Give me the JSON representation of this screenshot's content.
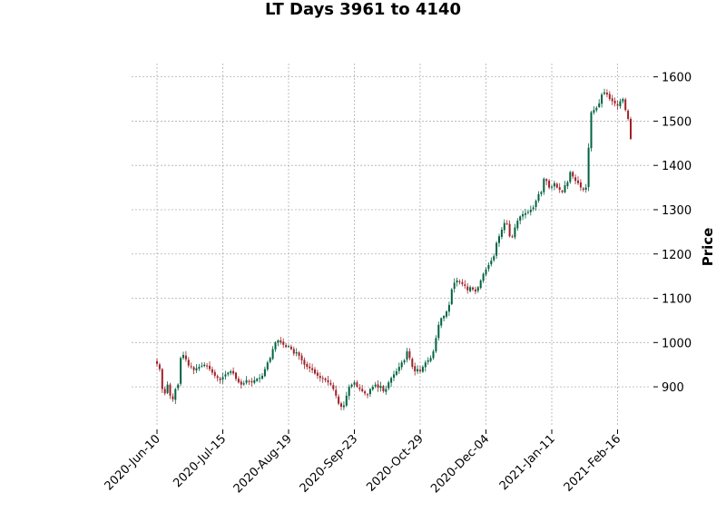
{
  "chart_data": {
    "type": "candlestick",
    "title": "LT Days 3961 to 4140",
    "ylabel": "Price",
    "xlabel": "",
    "ylim": [
      810,
      1630
    ],
    "y_ticks": [
      900,
      1000,
      1100,
      1200,
      1300,
      1400,
      1500,
      1600
    ],
    "x_tick_labels": [
      "2020-Jun-10",
      "2020-Jul-15",
      "2020-Aug-19",
      "2020-Sep-23",
      "2020-Oct-29",
      "2020-Dec-04",
      "2021-Jan-11",
      "2021-Feb-16"
    ],
    "x_tick_index": [
      0,
      25,
      50,
      75,
      100,
      125,
      150,
      175
    ],
    "grid": true,
    "up_color": "#006340",
    "down_color": "#A02128",
    "candles_close": [
      952,
      940,
      895,
      885,
      905,
      880,
      872,
      895,
      905,
      965,
      972,
      962,
      948,
      945,
      938,
      942,
      945,
      948,
      950,
      947,
      940,
      932,
      925,
      920,
      915,
      922,
      928,
      932,
      935,
      930,
      918,
      910,
      905,
      908,
      915,
      912,
      910,
      915,
      918,
      920,
      925,
      940,
      955,
      965,
      985,
      1000,
      1005,
      1000,
      995,
      990,
      992,
      985,
      975,
      978,
      970,
      960,
      950,
      945,
      942,
      938,
      930,
      925,
      920,
      918,
      915,
      910,
      905,
      895,
      880,
      862,
      855,
      858,
      880,
      900,
      905,
      910,
      900,
      895,
      890,
      885,
      882,
      895,
      900,
      905,
      898,
      902,
      890,
      895,
      910,
      920,
      928,
      935,
      945,
      955,
      960,
      980,
      965,
      945,
      935,
      940,
      935,
      945,
      955,
      960,
      965,
      980,
      1010,
      1040,
      1055,
      1060,
      1070,
      1085,
      1120,
      1135,
      1140,
      1138,
      1132,
      1128,
      1118,
      1125,
      1120,
      1115,
      1125,
      1140,
      1155,
      1165,
      1175,
      1185,
      1195,
      1225,
      1240,
      1255,
      1270,
      1268,
      1240,
      1238,
      1260,
      1275,
      1285,
      1290,
      1292,
      1295,
      1300,
      1305,
      1320,
      1335,
      1340,
      1370,
      1365,
      1350,
      1352,
      1360,
      1350,
      1345,
      1340,
      1355,
      1362,
      1385,
      1375,
      1365,
      1360,
      1350,
      1345,
      1350,
      1440,
      1520,
      1525,
      1530,
      1540,
      1560,
      1565,
      1560,
      1550,
      1545,
      1540,
      1535,
      1545,
      1550,
      1525,
      1505,
      1460
    ]
  }
}
